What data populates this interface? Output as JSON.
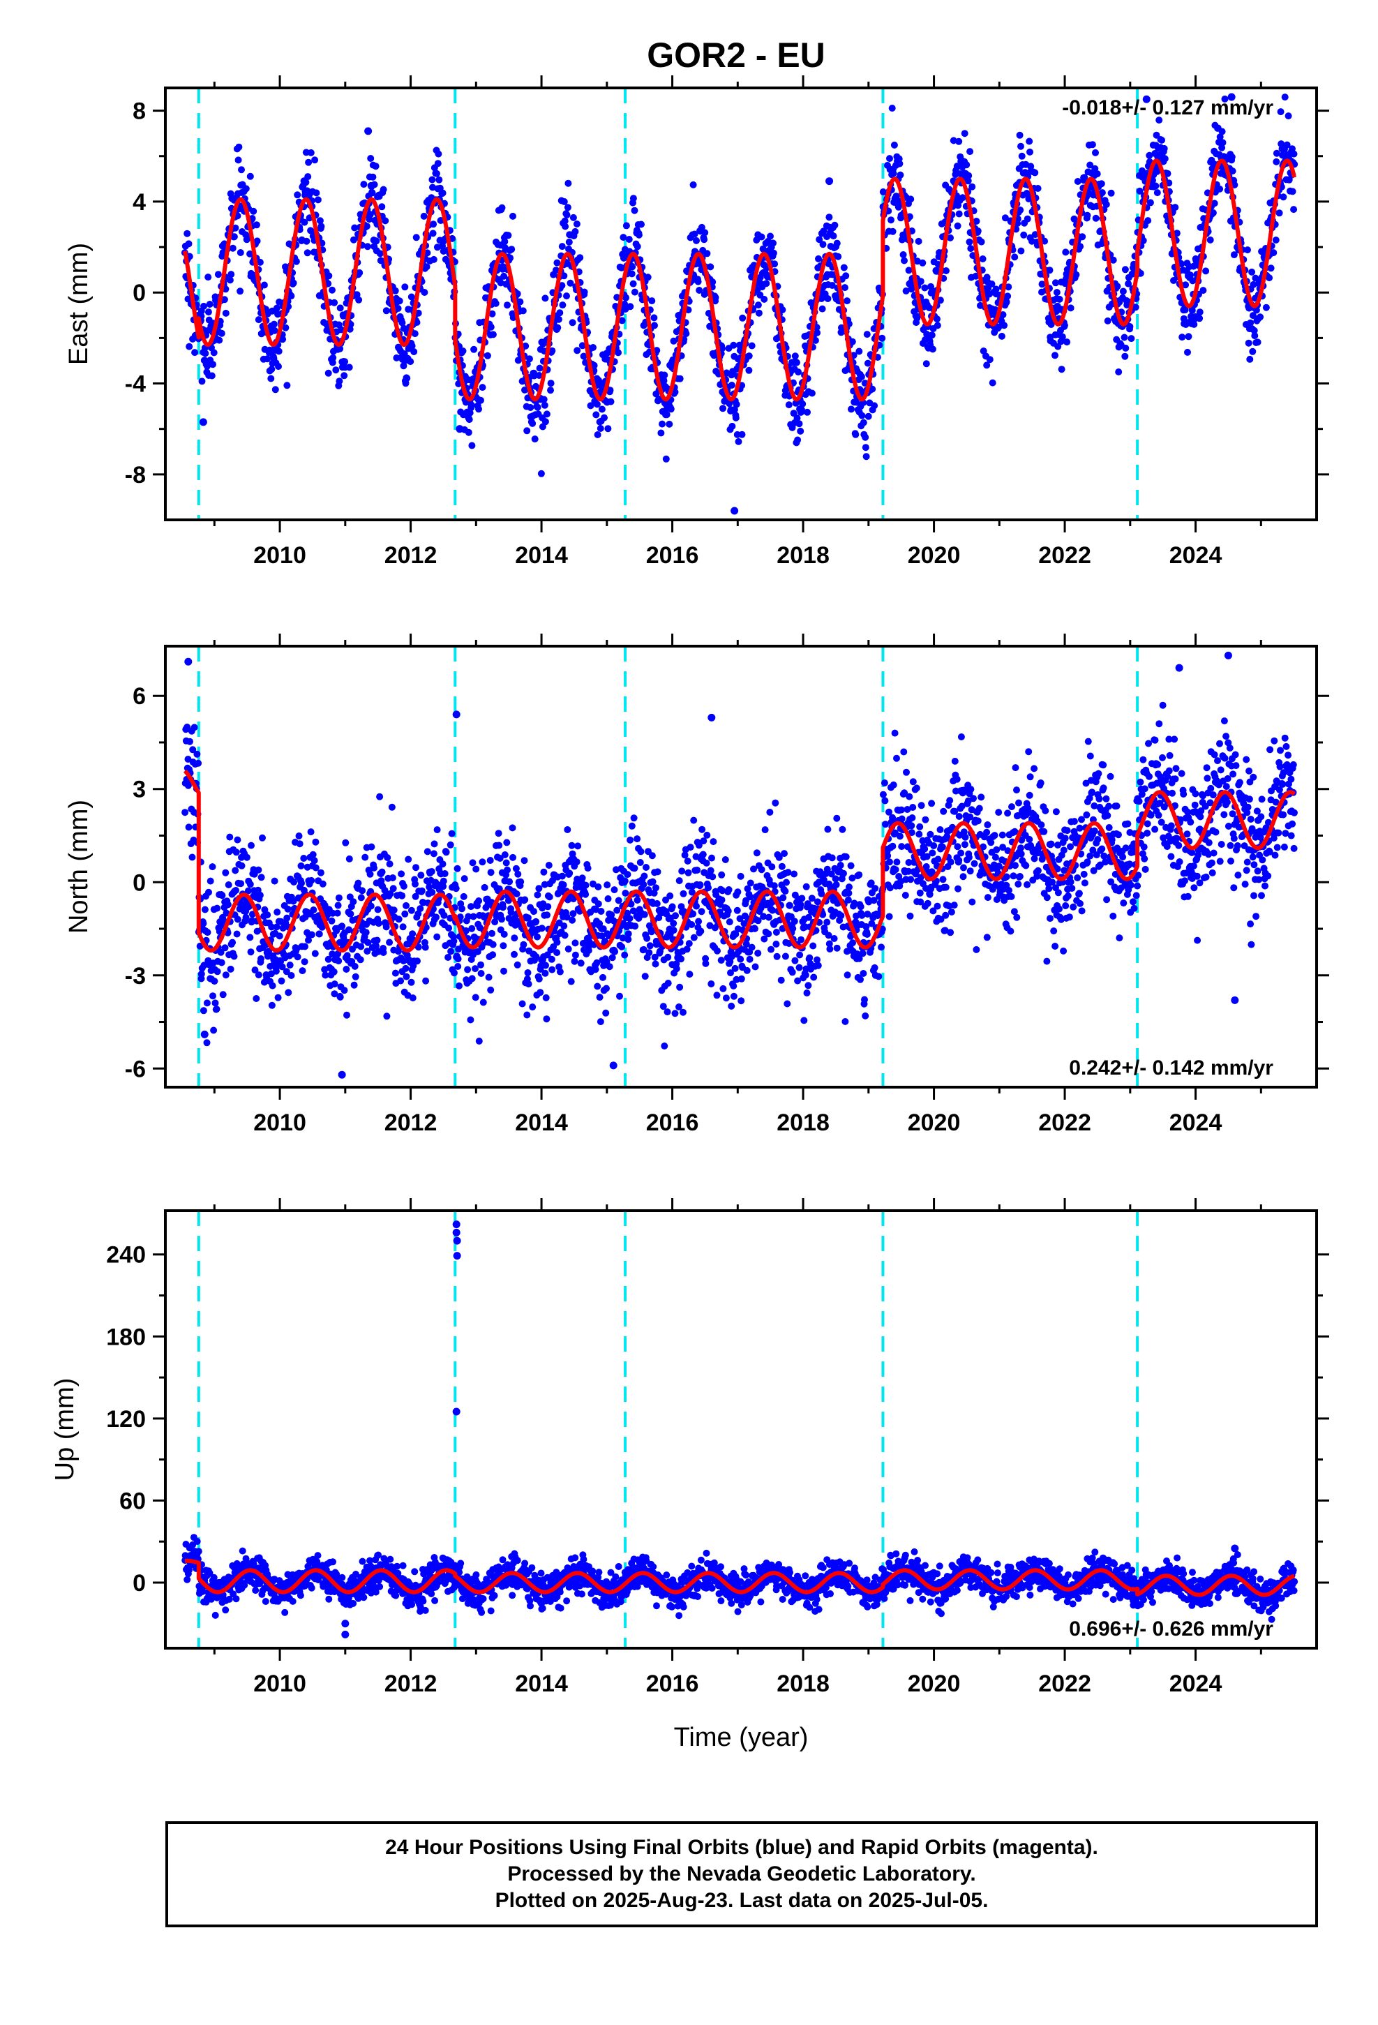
{
  "title": "GOR2 - EU",
  "colors": {
    "points": "#0000ff",
    "model": "#ff0000",
    "offsets": "#00e5ee",
    "axes": "#000000"
  },
  "chart_data": [
    {
      "type": "scatter",
      "name": "east",
      "ylabel": "East (mm)",
      "xlabel": "",
      "xlim": [
        2008.25,
        2025.85
      ],
      "ylim": [
        -10,
        9
      ],
      "xticks": [
        2010,
        2012,
        2014,
        2016,
        2018,
        2020,
        2022,
        2024
      ],
      "yticks": [
        -8,
        -4,
        0,
        4,
        8
      ],
      "rate_text": "-0.018+/- 0.127 mm/yr",
      "rate_position": "top-right",
      "offset_lines": [
        2008.76,
        2012.68,
        2015.28,
        2019.22,
        2023.11
      ],
      "model": {
        "segments": [
          {
            "start": 2008.55,
            "end": 2008.76,
            "intercept": 0.0,
            "amplitude": 3.1
          },
          {
            "start": 2008.76,
            "end": 2012.68,
            "intercept": 0.9,
            "amplitude": 3.2
          },
          {
            "start": 2012.68,
            "end": 2019.22,
            "intercept": -1.5,
            "amplitude": 3.2
          },
          {
            "start": 2019.22,
            "end": 2023.11,
            "intercept": 1.8,
            "amplitude": 3.2
          },
          {
            "start": 2023.11,
            "end": 2025.51,
            "intercept": 2.6,
            "amplitude": 3.2
          }
        ],
        "phase_peak": 0.4
      },
      "noise_sd": 1.0,
      "outliers": [
        [
          2016.95,
          -9.6
        ],
        [
          2011.35,
          7.1
        ],
        [
          2023.25,
          8.5
        ],
        [
          2024.55,
          8.6
        ],
        [
          2018.4,
          4.9
        ],
        [
          2012.75,
          -6.0
        ],
        [
          2008.83,
          -5.7
        ]
      ]
    },
    {
      "type": "scatter",
      "name": "north",
      "ylabel": "North (mm)",
      "xlabel": "",
      "xlim": [
        2008.25,
        2025.85
      ],
      "ylim": [
        -6.6,
        7.6
      ],
      "xticks": [
        2010,
        2012,
        2014,
        2016,
        2018,
        2020,
        2022,
        2024
      ],
      "yticks": [
        -6,
        -3,
        0,
        3,
        6
      ],
      "rate_text": "0.242+/- 0.142 mm/yr",
      "rate_position": "bottom-right",
      "offset_lines": [
        2008.76,
        2012.68,
        2015.28,
        2019.22,
        2023.11
      ],
      "model": {
        "segments": [
          {
            "start": 2008.55,
            "end": 2008.76,
            "intercept": 3.1,
            "amplitude": 0.6
          },
          {
            "start": 2008.76,
            "end": 2012.68,
            "intercept": -1.3,
            "amplitude": 0.9
          },
          {
            "start": 2012.68,
            "end": 2019.22,
            "intercept": -1.2,
            "amplitude": 0.9
          },
          {
            "start": 2019.22,
            "end": 2023.11,
            "intercept": 1.0,
            "amplitude": 0.9
          },
          {
            "start": 2023.11,
            "end": 2025.51,
            "intercept": 2.0,
            "amplitude": 0.9
          }
        ],
        "phase_peak": 0.45
      },
      "noise_sd": 1.05,
      "outliers": [
        [
          2008.6,
          7.1
        ],
        [
          2012.7,
          5.4
        ],
        [
          2016.6,
          5.3
        ],
        [
          2023.75,
          6.9
        ],
        [
          2024.5,
          7.3
        ],
        [
          2010.95,
          -6.2
        ],
        [
          2024.6,
          -3.8
        ],
        [
          2015.1,
          -5.9
        ],
        [
          2008.85,
          -4.9
        ]
      ]
    },
    {
      "type": "scatter",
      "name": "up",
      "ylabel": "Up (mm)",
      "xlabel": "Time (year)",
      "xlim": [
        2008.25,
        2025.85
      ],
      "ylim": [
        -48,
        272
      ],
      "xticks": [
        2010,
        2012,
        2014,
        2016,
        2018,
        2020,
        2022,
        2024
      ],
      "yticks": [
        0,
        60,
        120,
        180,
        240
      ],
      "rate_text": "0.696+/- 0.626 mm/yr",
      "rate_position": "bottom-right",
      "offset_lines": [
        2008.76,
        2012.68,
        2015.28,
        2019.22,
        2023.11
      ],
      "model": {
        "segments": [
          {
            "start": 2008.55,
            "end": 2008.76,
            "intercept": 14,
            "amplitude": 2
          },
          {
            "start": 2008.76,
            "end": 2012.68,
            "intercept": 1,
            "amplitude": 8
          },
          {
            "start": 2012.68,
            "end": 2019.22,
            "intercept": 0,
            "amplitude": 7
          },
          {
            "start": 2019.22,
            "end": 2023.11,
            "intercept": 2,
            "amplitude": 7
          },
          {
            "start": 2023.11,
            "end": 2025.51,
            "intercept": -2,
            "amplitude": 7
          }
        ],
        "phase_peak": 0.55
      },
      "noise_sd": 6,
      "outliers": [
        [
          2012.7,
          262
        ],
        [
          2012.7,
          256
        ],
        [
          2012.71,
          250
        ],
        [
          2012.71,
          239
        ],
        [
          2012.7,
          125
        ],
        [
          2011.0,
          -38
        ],
        [
          2011.0,
          -30
        ],
        [
          2024.6,
          25
        ]
      ]
    }
  ],
  "info": {
    "line1": "24 Hour Positions Using Final Orbits (blue) and Rapid Orbits (magenta).",
    "line2": "Processed by the Nevada Geodetic Laboratory.",
    "line3": "Plotted on 2025-Aug-23. Last data on 2025-Jul-05."
  }
}
